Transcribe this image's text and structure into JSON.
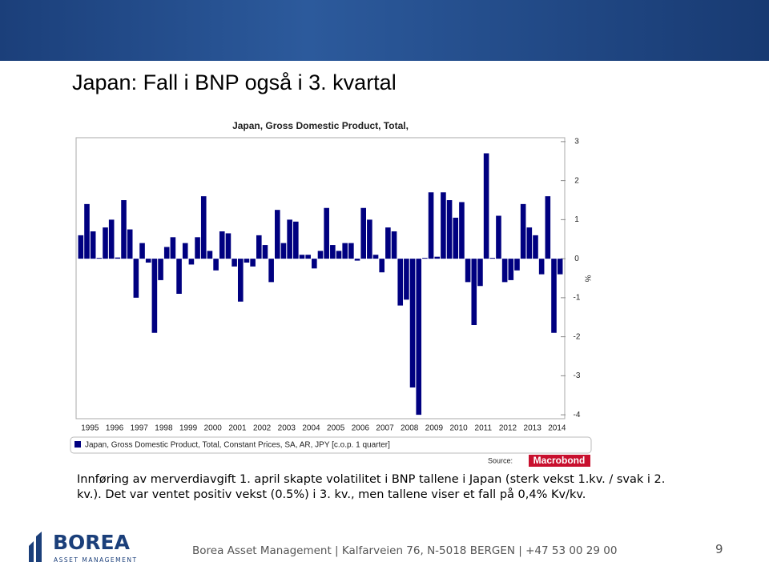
{
  "slide_title": "Japan: Fall i BNP også i 3. kvartal",
  "chart_data": {
    "type": "bar",
    "title": "Japan, Gross Domestic Product, Total,",
    "y_label": "%",
    "source_label": "Source:",
    "source": "Macrobond",
    "categories": [
      "1995",
      null,
      null,
      null,
      "1996",
      null,
      null,
      null,
      "1997",
      null,
      null,
      null,
      "1998",
      null,
      null,
      null,
      "1999",
      null,
      null,
      null,
      "2000",
      null,
      null,
      null,
      "2001",
      null,
      null,
      null,
      "2002",
      null,
      null,
      null,
      "2003",
      null,
      null,
      null,
      "2004",
      null,
      null,
      null,
      "2005",
      null,
      null,
      null,
      "2006",
      null,
      null,
      null,
      "2007",
      null,
      null,
      null,
      "2008",
      null,
      null,
      null,
      "2009",
      null,
      null,
      null,
      "2010",
      null,
      null,
      null,
      "2011",
      null,
      null,
      null,
      "2012",
      null,
      null,
      null,
      "2013",
      null,
      null,
      null,
      "2014",
      null,
      null
    ],
    "series": [
      {
        "name": "Japan, Gross Domestic Product, Total, Constant Prices, SA, AR, JPY [c.o.p. 1 quarter]",
        "color": "#000080",
        "values": [
          0.6,
          1.4,
          0.7,
          0.02,
          0.8,
          1.0,
          0.03,
          1.5,
          0.75,
          -1.0,
          0.4,
          -0.1,
          -1.9,
          -0.55,
          0.3,
          0.55,
          -0.9,
          0.4,
          -0.15,
          0.55,
          1.6,
          0.2,
          -0.3,
          0.7,
          0.65,
          -0.2,
          -1.1,
          -0.1,
          -0.2,
          0.6,
          0.35,
          -0.6,
          1.25,
          0.4,
          1.0,
          0.95,
          0.1,
          0.1,
          -0.25,
          0.2,
          1.3,
          0.35,
          0.2,
          0.4,
          0.4,
          -0.05,
          1.3,
          1.0,
          0.1,
          -0.35,
          0.8,
          0.7,
          -1.2,
          -1.05,
          -3.3,
          -4.0,
          0.02,
          1.7,
          0.05,
          1.7,
          1.5,
          1.05,
          1.45,
          -0.6,
          -1.7,
          -0.7,
          2.7,
          0.02,
          1.1,
          -0.6,
          -0.55,
          -0.3,
          1.4,
          0.8,
          0.6,
          -0.4,
          1.6,
          -1.9,
          -0.4
        ]
      }
    ],
    "ylim": [
      -4.1,
      3.1
    ],
    "yticks": [
      3,
      2,
      1,
      0,
      -1,
      -2,
      -3,
      -4
    ]
  },
  "body_text": "Innføring av merverdiavgift 1. april skapte volatilitet i BNP tallene i Japan (sterk vekst 1.kv. / svak i 2. kv.). Det var ventet positiv vekst (0.5%) i 3. kv., men tallene viser et fall på 0,4% Kv/kv.",
  "logo": {
    "name": "BOREA",
    "tagline": "ASSET MANAGEMENT"
  },
  "footer": "Borea Asset Management | Kalfarveien 76, N-5018 BERGEN | +47 53 00 29 00",
  "page_number": "9"
}
